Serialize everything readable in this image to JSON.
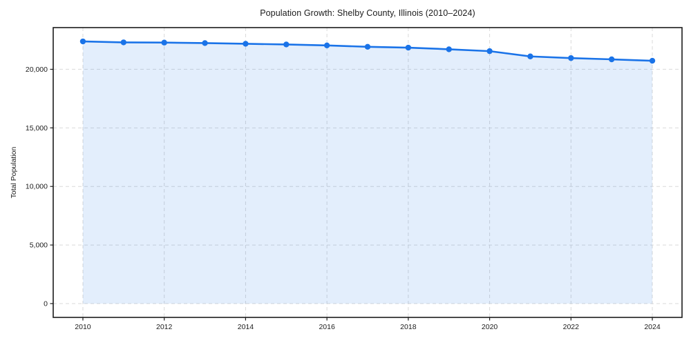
{
  "chart_data": {
    "type": "line",
    "title": "Population Growth: Shelby County, Illinois (2010–2024)",
    "xlabel": "",
    "ylabel": "Total Population",
    "x": [
      2010,
      2011,
      2012,
      2013,
      2014,
      2015,
      2016,
      2017,
      2018,
      2019,
      2020,
      2021,
      2022,
      2023,
      2024
    ],
    "series": [
      {
        "name": "Total Population",
        "values": [
          22380,
          22300,
          22280,
          22240,
          22180,
          22120,
          22040,
          21920,
          21850,
          21710,
          21550,
          21100,
          20960,
          20850,
          20730
        ]
      }
    ],
    "xticks": [
      2010,
      2012,
      2014,
      2016,
      2018,
      2020,
      2022,
      2024
    ],
    "yticks": [
      0,
      5000,
      10000,
      15000,
      20000
    ],
    "xlim": [
      2009.27,
      2024.73
    ],
    "ylim": [
      -1180,
      23560
    ],
    "grid": true,
    "grid_style": "dashed",
    "legend": false,
    "marker": "circle",
    "fill_to_zero": true,
    "line_color": "#1a73e8",
    "fill_color": "#1a73e8",
    "fill_opacity": 0.12,
    "grid_color": "#d9d9d9",
    "spine_color": "#1a1a1a",
    "tick_label_color": "#1a1a1a",
    "background_color": "#ffffff"
  }
}
